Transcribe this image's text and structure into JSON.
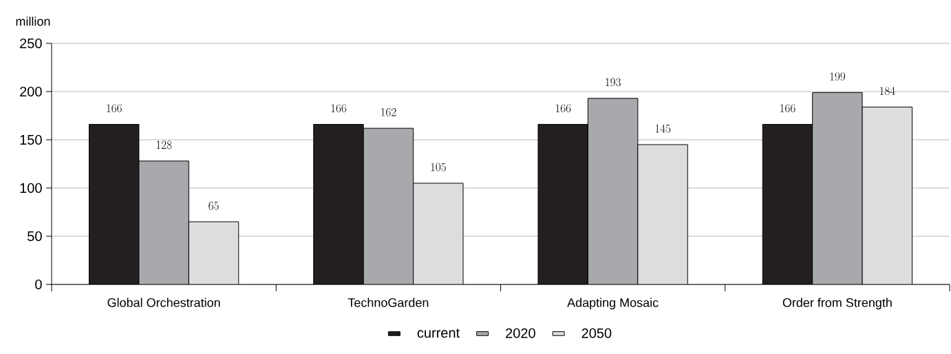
{
  "chart_data": {
    "type": "bar",
    "ylabel": "million",
    "categories": [
      "Global Orchestration",
      "TechnoGarden",
      "Adapting Mosaic",
      "Order from Strength"
    ],
    "series": [
      {
        "name": "current",
        "color": "#231f20",
        "values": [
          166,
          166,
          166,
          166
        ]
      },
      {
        "name": "2020",
        "color": "#a7a9ac",
        "values": [
          128,
          162,
          193,
          199
        ]
      },
      {
        "name": "2050",
        "color": "#dcdddf",
        "values": [
          65,
          105,
          145,
          184
        ]
      }
    ],
    "ylim": [
      0,
      250
    ],
    "yticks": [
      0,
      50,
      100,
      150,
      200,
      250
    ],
    "grid": "y",
    "legend": "bottom",
    "data_labels": true
  }
}
